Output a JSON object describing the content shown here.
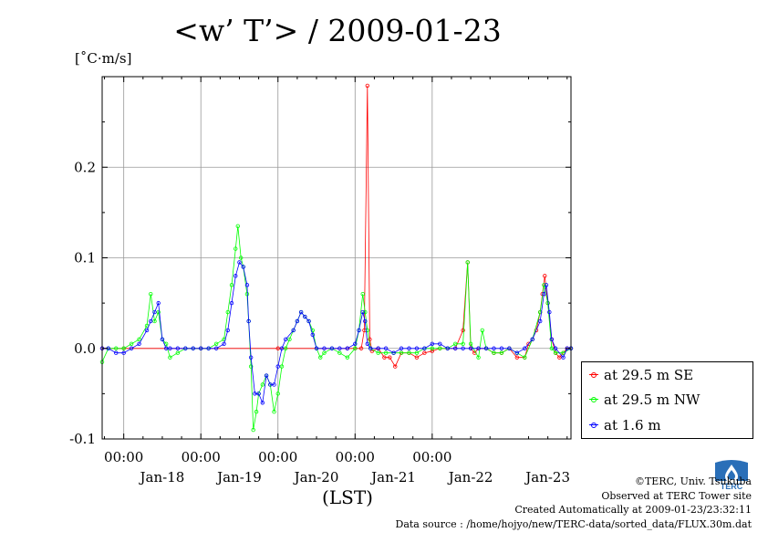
{
  "title": "<w’ T’> / 2009-01-23",
  "unit_label": "[˚C·m/s]",
  "xlabel": "(LST)",
  "footer": {
    "credit": "©TERC, Univ. Tsukuba",
    "site": "Observed at TERC Tower site",
    "created": "Created Automatically at 2009-01-23/23:32:11",
    "source": "Data source : /home/hojyo/new/TERC-data/sorted_data/FLUX.30m.dat"
  },
  "logo_text": "TERC",
  "chart_data": {
    "type": "line",
    "title": "<w’ T’> / 2009-01-23",
    "ylabel": "[˚C·m/s]",
    "xlabel": "(LST)",
    "x_unit": "days since 2009-01-17 00:00 LST",
    "xlim": [
      0.72,
      6.8
    ],
    "ylim": [
      -0.1,
      0.3
    ],
    "yticks": [
      -0.1,
      0.0,
      0.1,
      0.2
    ],
    "ytick_labels": [
      "-0.1",
      "0.0",
      "0.1",
      "0.2"
    ],
    "xticks": [
      1,
      2,
      3,
      4,
      5
    ],
    "xtick_time_labels": [
      "00:00",
      "00:00",
      "00:00",
      "00:00",
      "00:00"
    ],
    "date_labels": [
      {
        "x": 1.5,
        "label": "Jan-18"
      },
      {
        "x": 2.5,
        "label": "Jan-19"
      },
      {
        "x": 3.5,
        "label": "Jan-20"
      },
      {
        "x": 4.5,
        "label": "Jan-21"
      },
      {
        "x": 5.5,
        "label": "Jan-22"
      },
      {
        "x": 6.5,
        "label": "Jan-23"
      }
    ],
    "grid": true,
    "legend_position": "right",
    "series": [
      {
        "name": "at 29.5 m SE",
        "color": "#ff0000",
        "points": [
          [
            0.72,
            0.0
          ],
          [
            1.0,
            0.0
          ],
          [
            2.0,
            0.0
          ],
          [
            3.0,
            0.0
          ],
          [
            3.9,
            0.0
          ],
          [
            4.0,
            0.0
          ],
          [
            4.08,
            0.0
          ],
          [
            4.12,
            0.02
          ],
          [
            4.16,
            0.29
          ],
          [
            4.19,
            0.01
          ],
          [
            4.22,
            -0.003
          ],
          [
            4.3,
            0.0
          ],
          [
            4.38,
            -0.01
          ],
          [
            4.45,
            -0.01
          ],
          [
            4.52,
            -0.02
          ],
          [
            4.6,
            -0.005
          ],
          [
            4.7,
            -0.005
          ],
          [
            4.8,
            -0.01
          ],
          [
            4.9,
            -0.005
          ],
          [
            5.0,
            -0.003
          ],
          [
            5.1,
            0.0
          ],
          [
            5.2,
            0.0
          ],
          [
            5.3,
            0.0
          ],
          [
            5.4,
            0.02
          ],
          [
            5.46,
            0.095
          ],
          [
            5.5,
            0.0
          ],
          [
            5.55,
            -0.005
          ],
          [
            5.6,
            0.0
          ],
          [
            5.7,
            0.0
          ],
          [
            5.8,
            -0.005
          ],
          [
            5.9,
            -0.005
          ],
          [
            6.0,
            0.0
          ],
          [
            6.1,
            -0.01
          ],
          [
            6.2,
            -0.01
          ],
          [
            6.25,
            0.005
          ],
          [
            6.3,
            0.01
          ],
          [
            6.35,
            0.02
          ],
          [
            6.4,
            0.04
          ],
          [
            6.43,
            0.06
          ],
          [
            6.46,
            0.08
          ],
          [
            6.5,
            0.05
          ],
          [
            6.55,
            0.01
          ],
          [
            6.6,
            -0.005
          ],
          [
            6.65,
            -0.01
          ],
          [
            6.7,
            -0.005
          ],
          [
            6.75,
            0.0
          ],
          [
            6.8,
            0.0
          ]
        ]
      },
      {
        "name": "at 29.5 m NW",
        "color": "#00ff00",
        "points": [
          [
            0.72,
            -0.015
          ],
          [
            0.8,
            0.0
          ],
          [
            0.9,
            0.0
          ],
          [
            1.0,
            0.0
          ],
          [
            1.1,
            0.005
          ],
          [
            1.2,
            0.01
          ],
          [
            1.3,
            0.025
          ],
          [
            1.35,
            0.06
          ],
          [
            1.4,
            0.03
          ],
          [
            1.45,
            0.04
          ],
          [
            1.5,
            0.01
          ],
          [
            1.55,
            0.005
          ],
          [
            1.6,
            -0.01
          ],
          [
            1.7,
            -0.005
          ],
          [
            1.8,
            0.0
          ],
          [
            1.9,
            0.0
          ],
          [
            2.0,
            0.0
          ],
          [
            2.1,
            0.0
          ],
          [
            2.2,
            0.005
          ],
          [
            2.3,
            0.01
          ],
          [
            2.35,
            0.04
          ],
          [
            2.4,
            0.07
          ],
          [
            2.45,
            0.11
          ],
          [
            2.48,
            0.135
          ],
          [
            2.52,
            0.1
          ],
          [
            2.55,
            0.09
          ],
          [
            2.6,
            0.06
          ],
          [
            2.62,
            0.03
          ],
          [
            2.65,
            -0.02
          ],
          [
            2.68,
            -0.09
          ],
          [
            2.72,
            -0.07
          ],
          [
            2.75,
            -0.05
          ],
          [
            2.8,
            -0.04
          ],
          [
            2.85,
            -0.03
          ],
          [
            2.9,
            -0.04
          ],
          [
            2.95,
            -0.07
          ],
          [
            3.0,
            -0.05
          ],
          [
            3.05,
            -0.02
          ],
          [
            3.1,
            0.0
          ],
          [
            3.15,
            0.01
          ],
          [
            3.2,
            0.02
          ],
          [
            3.25,
            0.03
          ],
          [
            3.3,
            0.04
          ],
          [
            3.35,
            0.035
          ],
          [
            3.4,
            0.03
          ],
          [
            3.45,
            0.02
          ],
          [
            3.5,
            0.0
          ],
          [
            3.55,
            -0.01
          ],
          [
            3.6,
            -0.005
          ],
          [
            3.7,
            0.0
          ],
          [
            3.8,
            -0.005
          ],
          [
            3.9,
            -0.01
          ],
          [
            4.0,
            0.0
          ],
          [
            4.05,
            0.02
          ],
          [
            4.1,
            0.06
          ],
          [
            4.13,
            0.04
          ],
          [
            4.16,
            0.02
          ],
          [
            4.2,
            0.0
          ],
          [
            4.3,
            -0.005
          ],
          [
            4.4,
            -0.005
          ],
          [
            4.5,
            -0.005
          ],
          [
            4.6,
            -0.005
          ],
          [
            4.7,
            -0.005
          ],
          [
            4.8,
            -0.005
          ],
          [
            4.9,
            0.0
          ],
          [
            5.0,
            0.0
          ],
          [
            5.1,
            0.0
          ],
          [
            5.2,
            0.0
          ],
          [
            5.3,
            0.005
          ],
          [
            5.4,
            0.005
          ],
          [
            5.46,
            0.095
          ],
          [
            5.5,
            0.005
          ],
          [
            5.6,
            -0.01
          ],
          [
            5.65,
            0.02
          ],
          [
            5.7,
            0.0
          ],
          [
            5.8,
            -0.005
          ],
          [
            5.9,
            -0.005
          ],
          [
            6.0,
            0.0
          ],
          [
            6.1,
            -0.005
          ],
          [
            6.2,
            -0.01
          ],
          [
            6.3,
            0.01
          ],
          [
            6.4,
            0.04
          ],
          [
            6.45,
            0.07
          ],
          [
            6.5,
            0.05
          ],
          [
            6.55,
            0.0
          ],
          [
            6.6,
            -0.005
          ],
          [
            6.7,
            -0.005
          ],
          [
            6.8,
            0.0
          ]
        ]
      },
      {
        "name": "at 1.6 m",
        "color": "#0000ff",
        "points": [
          [
            0.72,
            0.0
          ],
          [
            0.8,
            0.0
          ],
          [
            0.9,
            -0.005
          ],
          [
            1.0,
            -0.005
          ],
          [
            1.1,
            0.0
          ],
          [
            1.2,
            0.005
          ],
          [
            1.3,
            0.02
          ],
          [
            1.35,
            0.03
          ],
          [
            1.4,
            0.04
          ],
          [
            1.45,
            0.05
          ],
          [
            1.5,
            0.01
          ],
          [
            1.55,
            0.0
          ],
          [
            1.6,
            0.0
          ],
          [
            1.7,
            0.0
          ],
          [
            1.8,
            0.0
          ],
          [
            1.9,
            0.0
          ],
          [
            2.0,
            0.0
          ],
          [
            2.1,
            0.0
          ],
          [
            2.2,
            0.0
          ],
          [
            2.3,
            0.005
          ],
          [
            2.35,
            0.02
          ],
          [
            2.4,
            0.05
          ],
          [
            2.45,
            0.08
          ],
          [
            2.5,
            0.095
          ],
          [
            2.55,
            0.09
          ],
          [
            2.6,
            0.07
          ],
          [
            2.62,
            0.03
          ],
          [
            2.65,
            -0.01
          ],
          [
            2.7,
            -0.05
          ],
          [
            2.75,
            -0.05
          ],
          [
            2.8,
            -0.06
          ],
          [
            2.85,
            -0.03
          ],
          [
            2.9,
            -0.04
          ],
          [
            2.95,
            -0.04
          ],
          [
            3.0,
            -0.02
          ],
          [
            3.05,
            0.0
          ],
          [
            3.1,
            0.01
          ],
          [
            3.2,
            0.02
          ],
          [
            3.25,
            0.03
          ],
          [
            3.3,
            0.04
          ],
          [
            3.35,
            0.035
          ],
          [
            3.4,
            0.03
          ],
          [
            3.45,
            0.015
          ],
          [
            3.5,
            0.0
          ],
          [
            3.6,
            0.0
          ],
          [
            3.7,
            0.0
          ],
          [
            3.8,
            0.0
          ],
          [
            3.9,
            0.0
          ],
          [
            4.0,
            0.005
          ],
          [
            4.05,
            0.02
          ],
          [
            4.1,
            0.04
          ],
          [
            4.13,
            0.03
          ],
          [
            4.16,
            0.005
          ],
          [
            4.2,
            0.0
          ],
          [
            4.3,
            0.0
          ],
          [
            4.4,
            0.0
          ],
          [
            4.5,
            -0.005
          ],
          [
            4.6,
            0.0
          ],
          [
            4.7,
            0.0
          ],
          [
            4.8,
            0.0
          ],
          [
            4.9,
            0.0
          ],
          [
            5.0,
            0.005
          ],
          [
            5.1,
            0.005
          ],
          [
            5.2,
            0.0
          ],
          [
            5.3,
            0.0
          ],
          [
            5.4,
            0.0
          ],
          [
            5.5,
            0.0
          ],
          [
            5.6,
            0.0
          ],
          [
            5.7,
            0.0
          ],
          [
            5.8,
            0.0
          ],
          [
            5.9,
            0.0
          ],
          [
            6.0,
            0.0
          ],
          [
            6.1,
            -0.005
          ],
          [
            6.2,
            0.0
          ],
          [
            6.3,
            0.01
          ],
          [
            6.4,
            0.03
          ],
          [
            6.45,
            0.06
          ],
          [
            6.48,
            0.07
          ],
          [
            6.52,
            0.04
          ],
          [
            6.55,
            0.01
          ],
          [
            6.6,
            0.0
          ],
          [
            6.7,
            -0.01
          ],
          [
            6.75,
            0.0
          ],
          [
            6.8,
            0.0
          ]
        ]
      }
    ]
  }
}
